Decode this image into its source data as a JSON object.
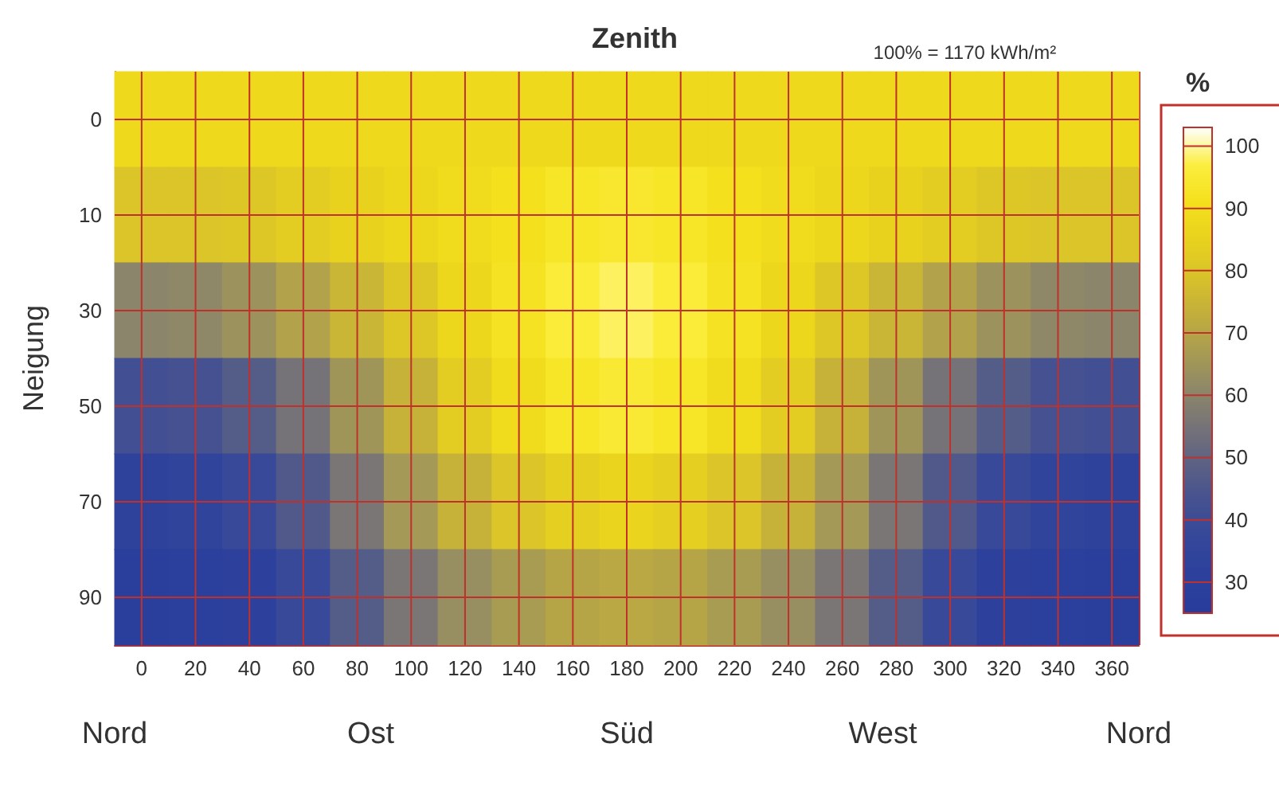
{
  "chart_data": {
    "type": "heatmap",
    "title": "Zenith",
    "subtitle": "100% = 1170 kWh/m²",
    "ylabel": "Neigung",
    "clabel": "%",
    "annotations": [
      "Nord",
      "Ost",
      "Süd",
      "West",
      "Nord"
    ],
    "categories": [
      "0",
      "20",
      "40",
      "60",
      "80",
      "100",
      "120",
      "140",
      "160",
      "180",
      "200",
      "220",
      "240",
      "260",
      "280",
      "300",
      "320",
      "340",
      "360"
    ],
    "y_categories": [
      "0",
      "10",
      "30",
      "50",
      "70",
      "90"
    ],
    "cells": [
      [
        88,
        88,
        88,
        88,
        88,
        88,
        88,
        88,
        88,
        88,
        88,
        88,
        88,
        88,
        88,
        88,
        88,
        88,
        88
      ],
      [
        80,
        80,
        81,
        83,
        85,
        87,
        89,
        91,
        93,
        94,
        93,
        91,
        89,
        87,
        85,
        83,
        81,
        80,
        80
      ],
      [
        60,
        61,
        64,
        69,
        75,
        81,
        87,
        92,
        96,
        98,
        96,
        92,
        87,
        81,
        75,
        69,
        64,
        61,
        60
      ],
      [
        42,
        43,
        47,
        55,
        65,
        74,
        83,
        89,
        93,
        95,
        93,
        89,
        83,
        74,
        65,
        55,
        47,
        43,
        42
      ],
      [
        33,
        34,
        38,
        46,
        56,
        66,
        74,
        80,
        84,
        86,
        84,
        80,
        74,
        66,
        56,
        46,
        38,
        34,
        33
      ],
      [
        28,
        29,
        32,
        38,
        47,
        56,
        63,
        67,
        70,
        71,
        70,
        67,
        63,
        56,
        47,
        38,
        32,
        29,
        28
      ]
    ],
    "clim": [
      25,
      103
    ],
    "cticks": [
      30,
      40,
      50,
      60,
      70,
      80,
      90,
      100
    ],
    "grid": true
  }
}
